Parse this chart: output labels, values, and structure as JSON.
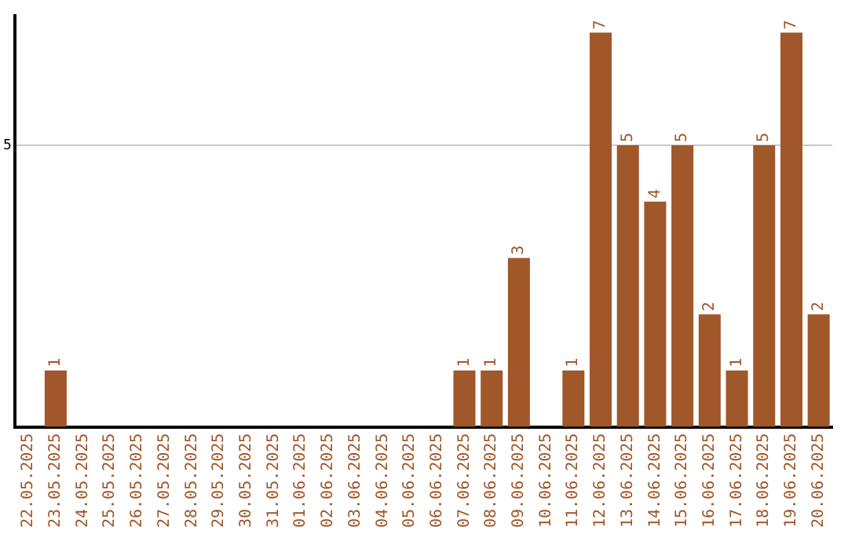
{
  "chart_data": {
    "type": "bar",
    "categories": [
      "22.05.2025",
      "23.05.2025",
      "24.05.2025",
      "25.05.2025",
      "26.05.2025",
      "27.05.2025",
      "28.05.2025",
      "29.05.2025",
      "30.05.2025",
      "31.05.2025",
      "01.06.2025",
      "02.06.2025",
      "03.06.2025",
      "04.06.2025",
      "05.06.2025",
      "06.06.2025",
      "07.06.2025",
      "08.06.2025",
      "09.06.2025",
      "10.06.2025",
      "11.06.2025",
      "12.06.2025",
      "13.06.2025",
      "14.06.2025",
      "15.06.2025",
      "16.06.2025",
      "17.06.2025",
      "18.06.2025",
      "19.06.2025",
      "20.06.2025"
    ],
    "values": [
      0,
      1,
      0,
      0,
      0,
      0,
      0,
      0,
      0,
      0,
      0,
      0,
      0,
      0,
      0,
      0,
      1,
      1,
      3,
      0,
      1,
      7,
      5,
      4,
      5,
      2,
      1,
      5,
      7,
      2
    ],
    "value_labels": [
      null,
      "1",
      null,
      null,
      null,
      null,
      null,
      null,
      null,
      null,
      null,
      null,
      null,
      null,
      null,
      null,
      "1",
      "1",
      "3",
      null,
      "1",
      "7",
      "5",
      "4",
      "5",
      "2",
      "1",
      "5",
      "7",
      "2"
    ],
    "color": "#a0572a",
    "ylim": [
      0,
      7.3
    ],
    "yticks": [
      5
    ],
    "grid": "y",
    "legend": false
  }
}
